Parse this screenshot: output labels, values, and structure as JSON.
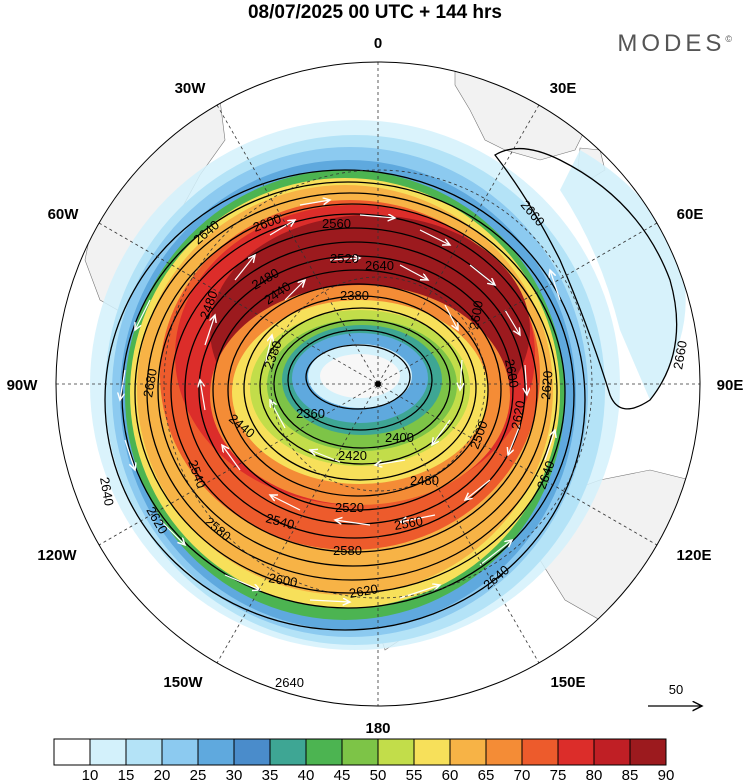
{
  "header": {
    "title": "08/07/2025  00 UTC  + 144 hrs",
    "brand": "MODES",
    "brand_mark": "©"
  },
  "map": {
    "projection": "south-polar-stereographic",
    "longitude_labels": {
      "top": "0",
      "upper_left": "30W",
      "upper_right": "30E",
      "left_upper": "60W",
      "right_upper": "60E",
      "left": "90W",
      "right": "90E",
      "left_lower": "120W",
      "right_lower": "120E",
      "lower_left": "150W",
      "lower_right": "150E",
      "bottom": "180"
    },
    "contour_labels": [
      "2640",
      "2600",
      "2560",
      "2520",
      "2480",
      "2440",
      "2380",
      "2380",
      "2480",
      "2680",
      "2540",
      "2360",
      "2400",
      "2420",
      "2440",
      "2480",
      "2500",
      "2520",
      "2540",
      "2560",
      "2580",
      "2600",
      "2620",
      "2640",
      "2640",
      "2620",
      "2580",
      "2600",
      "2620",
      "2640",
      "2660",
      "2660",
      "2600",
      "2620",
      "2640",
      "2640"
    ],
    "vector_reference": {
      "label": "50"
    }
  },
  "colorbar": {
    "ticks": [
      "10",
      "15",
      "20",
      "25",
      "30",
      "35",
      "40",
      "45",
      "50",
      "55",
      "60",
      "65",
      "70",
      "75",
      "80",
      "85",
      "90"
    ],
    "colors": [
      "#ffffff",
      "#d3f1fb",
      "#b4e3f7",
      "#8ccaf0",
      "#5fa9de",
      "#4a8ccb",
      "#3ea694",
      "#4cb451",
      "#7dc447",
      "#c2dd4a",
      "#f7e05a",
      "#f7b346",
      "#f48c36",
      "#ed5b2c",
      "#dc2d2a",
      "#c01f25",
      "#9c1a1e"
    ]
  }
}
